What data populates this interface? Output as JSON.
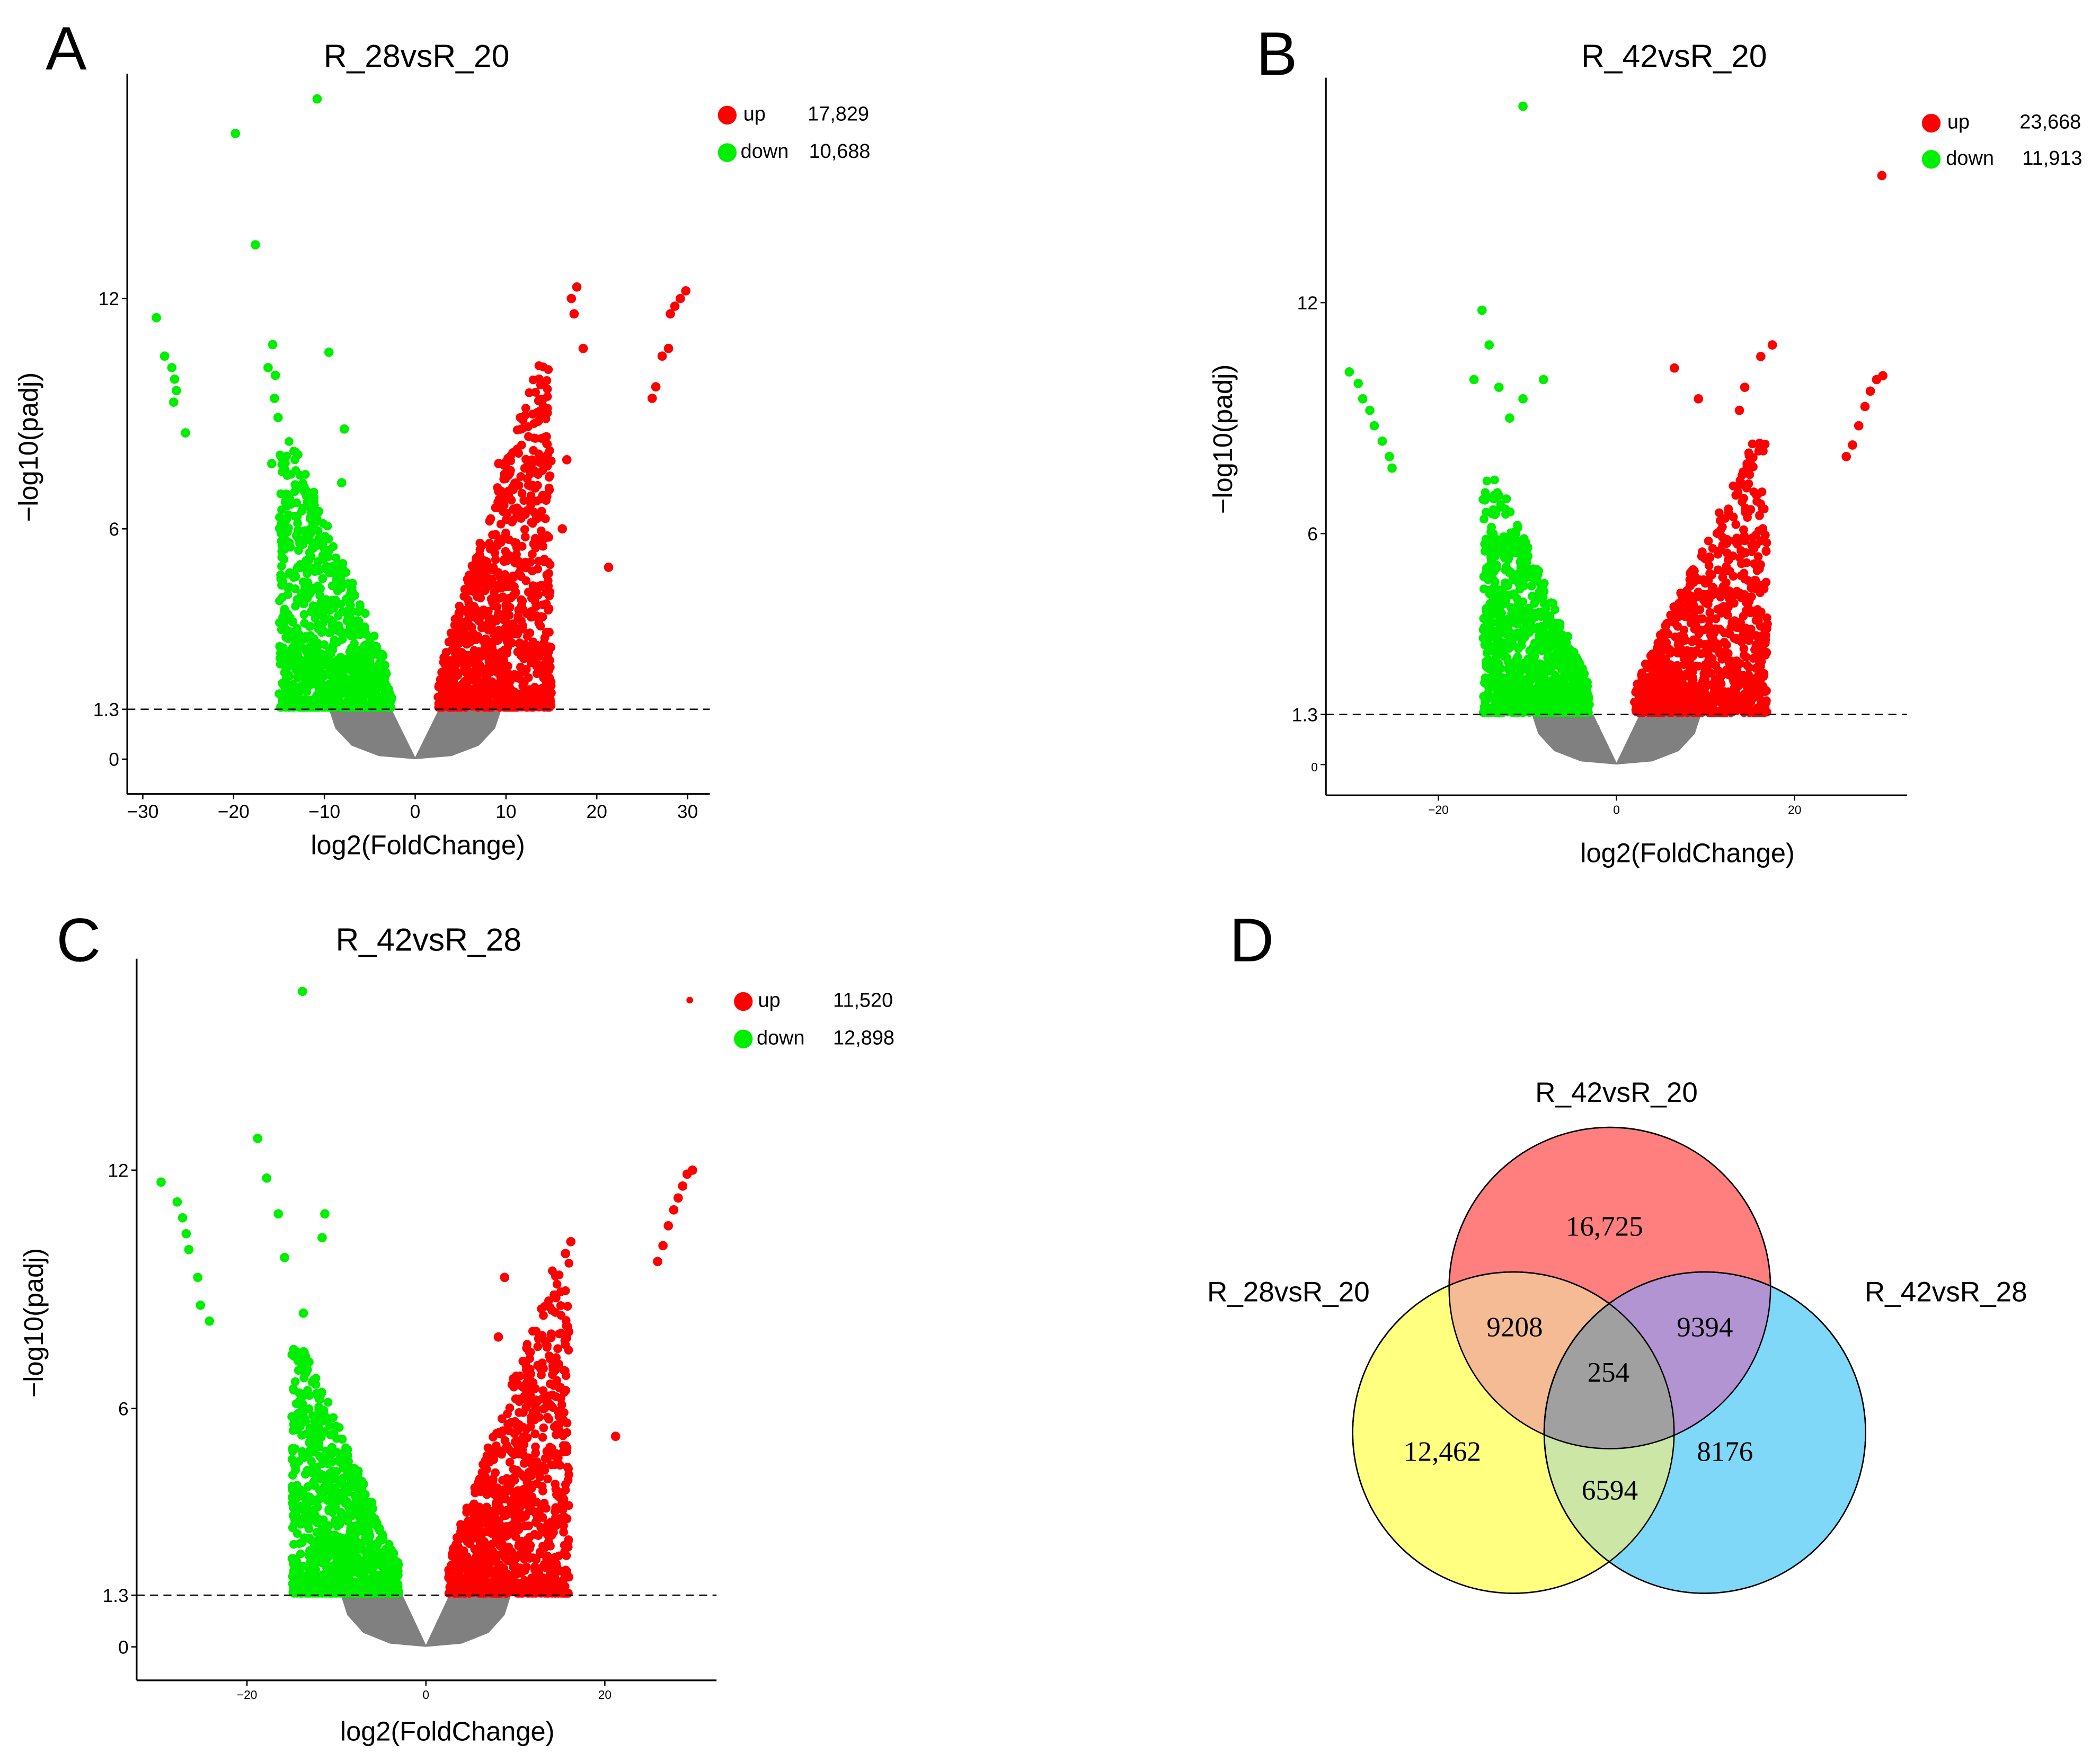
{
  "colors": {
    "up": "#ff0000",
    "down": "#00ee00",
    "ns": "#808080",
    "venn_top": "#ff7f7f",
    "venn_left": "#ffff80",
    "venn_right": "#80d8f8",
    "venn_top_left": "#f4bb94",
    "venn_top_right": "#b394d2",
    "venn_left_right": "#cce6a6",
    "venn_center": "#a0a0a0"
  },
  "chart_data": [
    {
      "panel": "A",
      "type": "scatter",
      "title": "R_28vsR_20",
      "xlabel": "log2(FoldChange)",
      "ylabel": "−log10(padj)",
      "xlim": [
        -31,
        32
      ],
      "ylim": [
        -1,
        18.5
      ],
      "xticks": [
        "−30",
        "−20",
        "−10",
        "0",
        "10",
        "20",
        "30"
      ],
      "xtick_values": [
        -30,
        -20,
        -10,
        0,
        10,
        20,
        30
      ],
      "yticks": [
        "0",
        "1.3",
        "6",
        "12"
      ],
      "ytick_values": [
        0,
        1.3,
        6,
        12
      ],
      "threshold": 1.3,
      "legend": [
        {
          "label": "up",
          "count": "17,829"
        },
        {
          "label": "down",
          "count": "10,688"
        }
      ],
      "down_extent": {
        "x": [
          -15,
          -2.5
        ],
        "ymax": 8.3
      },
      "up_extent": {
        "x": [
          2.5,
          15
        ],
        "ymax": 10.3
      },
      "outliers_down": [
        [
          -10.8,
          17.2
        ],
        [
          -19.8,
          16.3
        ],
        [
          -17.6,
          13.4
        ],
        [
          -28.5,
          11.5
        ],
        [
          -27.6,
          10.5
        ],
        [
          -26.8,
          10.2
        ],
        [
          -26.5,
          9.9
        ],
        [
          -26.3,
          9.6
        ],
        [
          -26.6,
          9.3
        ],
        [
          -25.3,
          8.5
        ],
        [
          -9.5,
          10.6
        ],
        [
          -15.7,
          10.8
        ],
        [
          -16.2,
          10.2
        ],
        [
          -15.4,
          10.0
        ],
        [
          -15.5,
          9.4
        ],
        [
          -15.1,
          8.9
        ],
        [
          -7.8,
          8.6
        ],
        [
          -8.1,
          7.2
        ],
        [
          -15.8,
          7.7
        ]
      ],
      "outliers_up": [
        [
          17.8,
          12.3
        ],
        [
          17.2,
          12.0
        ],
        [
          17.5,
          11.6
        ],
        [
          18.5,
          10.7
        ],
        [
          29.8,
          12.2
        ],
        [
          29.2,
          12.0
        ],
        [
          28.6,
          11.8
        ],
        [
          28.1,
          11.6
        ],
        [
          27.9,
          10.7
        ],
        [
          27.2,
          10.5
        ],
        [
          26.5,
          9.7
        ],
        [
          26.1,
          9.4
        ],
        [
          21.3,
          5.0
        ],
        [
          9.2,
          7.7
        ],
        [
          16.7,
          7.8
        ],
        [
          16.2,
          6.0
        ]
      ]
    },
    {
      "panel": "B",
      "type": "scatter",
      "title": "R_42vsR_20",
      "xlabel": "log2(FoldChange)",
      "ylabel": "−log10(padj)",
      "xlim": [
        -32,
        33
      ],
      "ylim": [
        -0.8,
        18.5
      ],
      "xticks": [
        "−20",
        "0",
        "20"
      ],
      "xtick_values": [
        -20,
        0,
        20
      ],
      "yticks": [
        "0",
        "1.3",
        "6",
        "12"
      ],
      "ytick_values": [
        0,
        1.3,
        6,
        12
      ],
      "threshold": 1.3,
      "legend": [
        {
          "label": "up",
          "count": "23,668"
        },
        {
          "label": "down",
          "count": "11,913"
        }
      ],
      "down_extent": {
        "x": [
          -15,
          -3
        ],
        "ymax": 7.5
      },
      "up_extent": {
        "x": [
          2,
          17
        ],
        "ymax": 8.5
      },
      "outliers_down": [
        [
          -10.5,
          17.1
        ],
        [
          -15.1,
          11.8
        ],
        [
          -14.3,
          10.9
        ],
        [
          -16,
          10
        ],
        [
          -8.2,
          10
        ],
        [
          -10.5,
          9.5
        ],
        [
          -30,
          10.2
        ],
        [
          -29,
          9.9
        ],
        [
          -28.5,
          9.5
        ],
        [
          -27.7,
          9.2
        ],
        [
          -27.2,
          8.8
        ],
        [
          -26.3,
          8.4
        ],
        [
          -25.5,
          8.0
        ],
        [
          -25.2,
          7.7
        ],
        [
          -13.2,
          9.8
        ],
        [
          -12,
          9
        ]
      ],
      "outliers_up": [
        [
          29.8,
          15.3
        ],
        [
          17.5,
          10.9
        ],
        [
          16.2,
          10.6
        ],
        [
          6.5,
          10.3
        ],
        [
          29.9,
          10.1
        ],
        [
          29.2,
          10.0
        ],
        [
          28.5,
          9.7
        ],
        [
          27.9,
          9.3
        ],
        [
          27.2,
          8.8
        ],
        [
          26.5,
          8.3
        ],
        [
          25.8,
          8.0
        ],
        [
          9.2,
          9.5
        ],
        [
          14.4,
          9.8
        ],
        [
          13.8,
          9.2
        ]
      ]
    },
    {
      "panel": "C",
      "type": "scatter",
      "title": "R_42vsR_28",
      "xlabel": "log2(FoldChange)",
      "ylabel": "−log10(padj)",
      "xlim": [
        -32,
        33
      ],
      "ylim": [
        -0.8,
        17.5
      ],
      "xticks": [
        "−20",
        "0",
        "20"
      ],
      "xtick_values": [
        -20,
        0,
        20
      ],
      "yticks": [
        "0",
        "1.3",
        "6",
        "12"
      ],
      "ytick_values": [
        0,
        1.3,
        6,
        12
      ],
      "threshold": 1.3,
      "legend": [
        {
          "label": "up",
          "count": "11,520"
        },
        {
          "label": "down",
          "count": "12,898"
        }
      ],
      "down_extent": {
        "x": [
          -15,
          -3
        ],
        "ymax": 7.5
      },
      "up_extent": {
        "x": [
          2.5,
          16
        ],
        "ymax": 9.8
      },
      "outliers_down": [
        [
          -13.8,
          16.5
        ],
        [
          -18.8,
          12.8
        ],
        [
          -17.8,
          11.8
        ],
        [
          -29.6,
          11.7
        ],
        [
          -27.8,
          11.2
        ],
        [
          -27.2,
          10.8
        ],
        [
          -26.8,
          10.4
        ],
        [
          -26.5,
          10.0
        ],
        [
          -25.5,
          9.3
        ],
        [
          -25.2,
          8.6
        ],
        [
          -24.2,
          8.2
        ],
        [
          -16.5,
          10.9
        ],
        [
          -11.3,
          10.9
        ],
        [
          -11.6,
          10.3
        ],
        [
          -15.8,
          9.8
        ],
        [
          -13.7,
          8.4
        ]
      ],
      "outliers_up": [
        [
          29.8,
          12.0
        ],
        [
          29.2,
          11.9
        ],
        [
          28.7,
          11.6
        ],
        [
          28.2,
          11.3
        ],
        [
          27.7,
          11.0
        ],
        [
          27.1,
          10.6
        ],
        [
          26.5,
          10.1
        ],
        [
          25.9,
          9.7
        ],
        [
          16.2,
          10.2
        ],
        [
          15.6,
          9.9
        ],
        [
          8.8,
          9.3
        ],
        [
          8.1,
          7.8
        ],
        [
          21.2,
          5.3
        ]
      ]
    },
    {
      "panel": "D",
      "type": "venn",
      "sets": [
        "R_42vsR_20",
        "R_28vsR_20",
        "R_42vsR_28"
      ],
      "regions": {
        "only_42vs20": "16,725",
        "only_28vs20": "12,462",
        "only_42vs28": "8176",
        "42vs20_and_28vs20": "9208",
        "42vs20_and_42vs28": "9394",
        "28vs20_and_42vs28": "6594",
        "all_three": "254"
      }
    }
  ],
  "ns_region": [
    [
      -9.5,
      1.3
    ],
    [
      -8.8,
      0.8
    ],
    [
      -7,
      0.35
    ],
    [
      -4,
      0.08
    ],
    [
      0,
      0
    ],
    [
      4,
      0.08
    ],
    [
      7,
      0.35
    ],
    [
      8.8,
      0.8
    ],
    [
      9.5,
      1.3
    ],
    [
      2.6,
      1.3
    ],
    [
      0,
      0.05
    ],
    [
      -2.6,
      1.3
    ]
  ]
}
